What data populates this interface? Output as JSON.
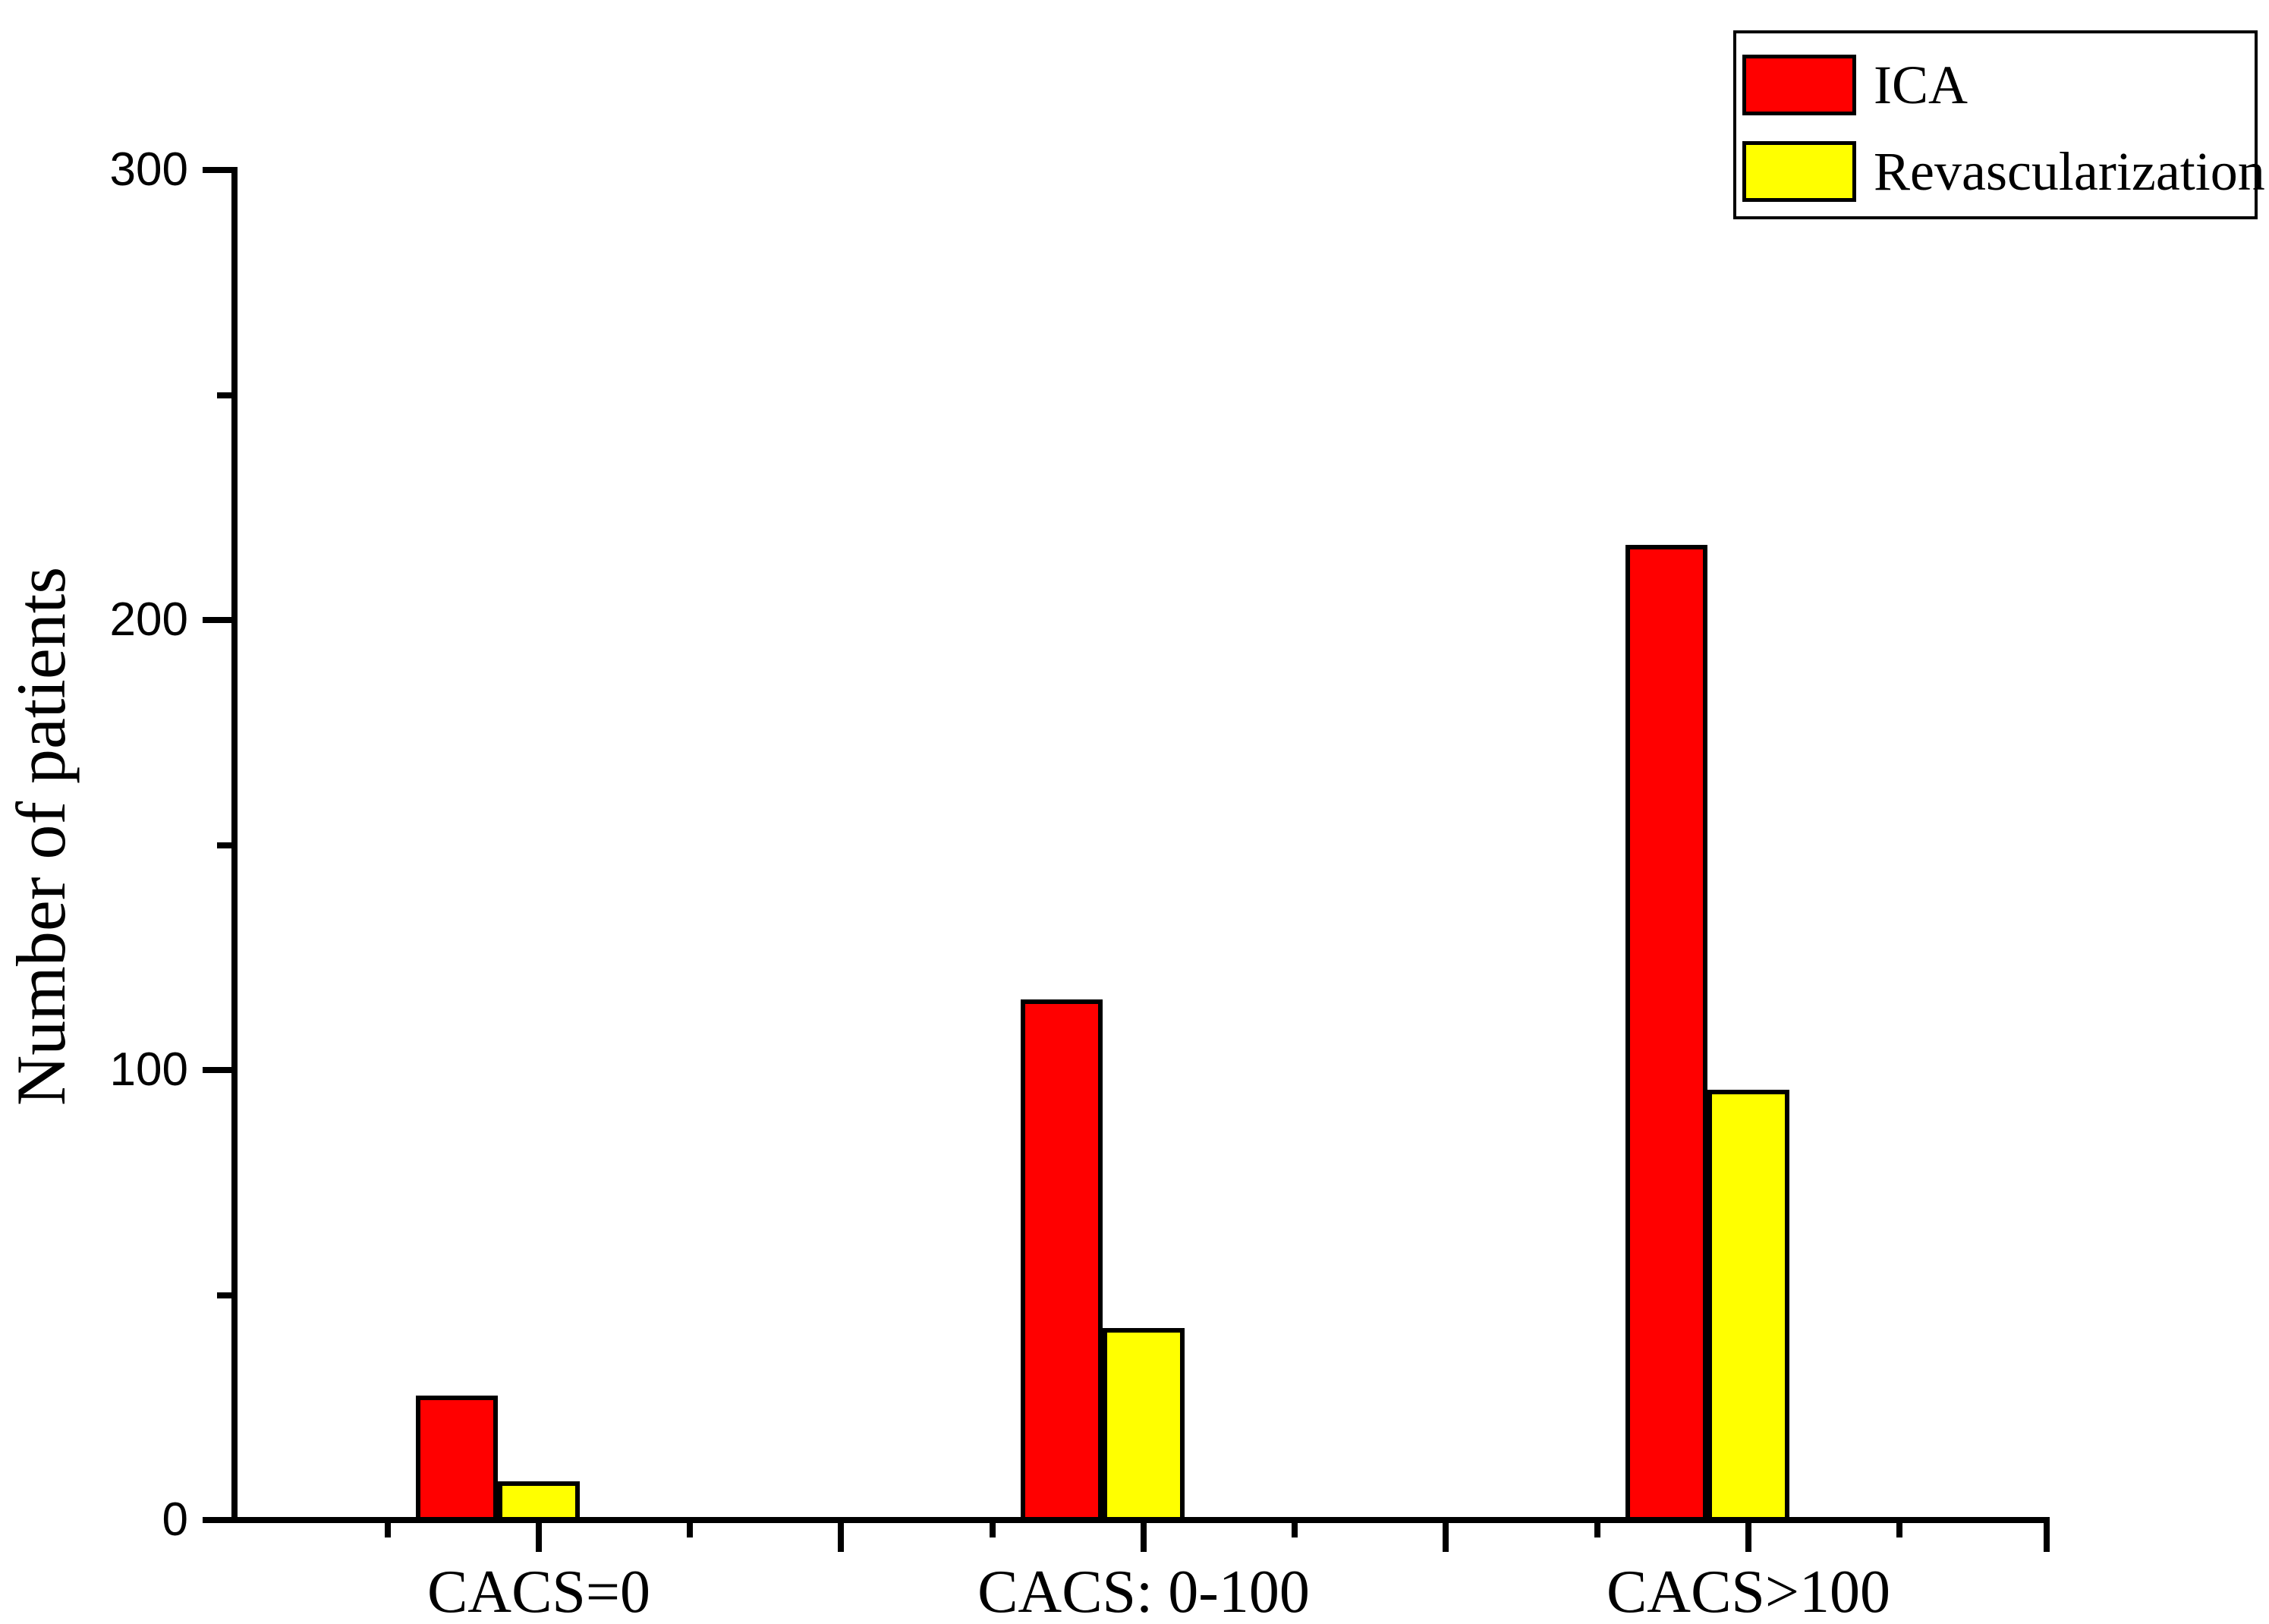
{
  "chart_data": {
    "type": "bar",
    "title": "",
    "categories": [
      "CACS=0",
      "CACS: 0-100",
      "CACS>100"
    ],
    "series": [
      {
        "name": "ICA",
        "color": "#FF0000",
        "values": [
          27,
          115,
          216
        ]
      },
      {
        "name": "Revascularization",
        "color": "#FFFF00",
        "values": [
          8,
          42,
          95
        ]
      }
    ],
    "xlabel": "",
    "ylabel": "Number of patients",
    "ylim": [
      0,
      300
    ],
    "yticks_major": [
      0,
      100,
      200,
      300
    ],
    "yticks_minor": [
      50,
      150,
      250
    ],
    "bar_edge_color": "#000000",
    "axis_color": "#000000",
    "background_color": "#FFFFFF",
    "grid": false,
    "legend": {
      "position": "top-right",
      "border_color": "#000000",
      "entries": [
        "ICA",
        "Revascularization"
      ]
    }
  }
}
